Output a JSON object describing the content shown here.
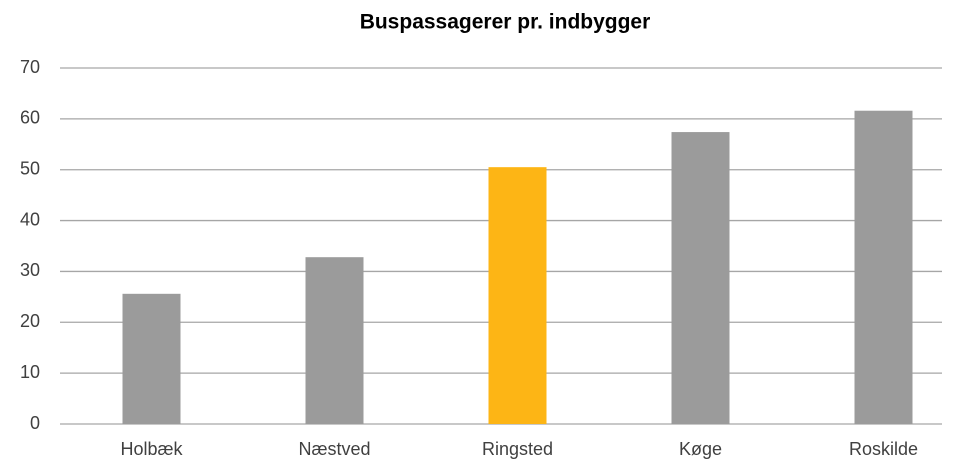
{
  "chart_data": {
    "type": "bar",
    "title": "Buspassagerer pr. indbygger",
    "categories": [
      "Holbæk",
      "Næstved",
      "Ringsted",
      "Køge",
      "Roskilde"
    ],
    "values": [
      25.6,
      32.8,
      50.5,
      57.4,
      61.6
    ],
    "colors": [
      "#9b9b9b",
      "#9b9b9b",
      "#fdb515",
      "#9b9b9b",
      "#9b9b9b"
    ],
    "ylim": [
      0,
      70
    ],
    "yticks": [
      0,
      10,
      20,
      30,
      40,
      50,
      60,
      70
    ],
    "grid": true
  }
}
